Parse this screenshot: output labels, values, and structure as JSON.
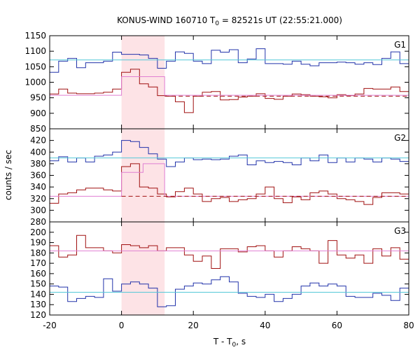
{
  "chart_data": [
    {
      "type": "line",
      "title_prefix": "KONUS-WIND 160710 T",
      "title_sub": "0",
      "title_suffix": " = 82521s UT (22:55:21.000)",
      "xlabel_prefix": "T - T",
      "xlabel_sub": "0",
      "xlabel_suffix": ", s",
      "ylabel": "counts / sec",
      "xlim": [
        -20,
        80
      ],
      "x_ticks": [
        "-20",
        "0",
        "20",
        "40",
        "60",
        "80"
      ],
      "highlight_interval": [
        0,
        12
      ],
      "colors": {
        "highlight": "#fde3e6",
        "blue": "#2233aa",
        "red": "#a01010",
        "cyan": "#55c8d8",
        "pink": "#e07fd2"
      },
      "panels": [
        {
          "label": "G1",
          "ylim": [
            850,
            1150
          ],
          "y_ticks": [
            "850",
            "900",
            "950",
            "1000",
            "1050",
            "1100",
            "1150"
          ],
          "series": [
            {
              "color": "#2233aa",
              "x": [
                -20,
                -17.5,
                -15,
                -12.5,
                -10,
                -7.5,
                -5,
                -2.5,
                0,
                2.5,
                5,
                7.5,
                10,
                12.5,
                15,
                17.5,
                20,
                22.5,
                25,
                27.5,
                30,
                32.5,
                35,
                37.5,
                40,
                42.5,
                45,
                47.5,
                50,
                52.5,
                55,
                57.5,
                60,
                62.5,
                65,
                67.5,
                70,
                72.5,
                75,
                77.5,
                80
              ],
              "values": [
                1032,
                1068,
                1077,
                1047,
                1063,
                1063,
                1068,
                1097,
                1090,
                1090,
                1088,
                1077,
                1045,
                1068,
                1098,
                1093,
                1068,
                1060,
                1103,
                1097,
                1105,
                1063,
                1075,
                1108,
                1060,
                1060,
                1058,
                1068,
                1058,
                1053,
                1063,
                1063,
                1065,
                1063,
                1058,
                1063,
                1057,
                1077,
                1098,
                1060,
                1053
              ]
            },
            {
              "color": "#55c8d8",
              "x": [
                -20,
                80
              ],
              "values": [
                1072,
                1072
              ]
            },
            {
              "color": "#a01010",
              "x": [
                -20,
                -17.5,
                -15,
                -12.5,
                -10,
                -7.5,
                -5,
                -2.5,
                0,
                2.5,
                5,
                7.5,
                10,
                12.5,
                15,
                17.5,
                20,
                22.5,
                25,
                27.5,
                30,
                32.5,
                35,
                37.5,
                40,
                42.5,
                45,
                47.5,
                50,
                52.5,
                55,
                57.5,
                60,
                62.5,
                65,
                67.5,
                70,
                72.5,
                75,
                77.5,
                80
              ],
              "values": [
                962,
                978,
                965,
                963,
                963,
                965,
                968,
                978,
                1032,
                1042,
                995,
                985,
                957,
                955,
                937,
                902,
                955,
                968,
                970,
                943,
                944,
                952,
                955,
                963,
                948,
                945,
                955,
                962,
                960,
                955,
                953,
                950,
                960,
                957,
                962,
                980,
                978,
                978,
                985,
                970,
                965
              ]
            },
            {
              "color": "#e07fd2",
              "x": [
                -20,
                0,
                0,
                12,
                12,
                80
              ],
              "values": [
                958,
                958,
                1018,
                1018,
                958,
                958
              ]
            },
            {
              "color": "#a01010",
              "dashed": true,
              "x": [
                12,
                80
              ],
              "values": [
                955,
                955
              ]
            }
          ]
        },
        {
          "label": "G2",
          "ylim": [
            280,
            440
          ],
          "y_ticks": [
            "280",
            "300",
            "320",
            "340",
            "360",
            "380",
            "400",
            "420"
          ],
          "series": [
            {
              "color": "#2233aa",
              "x": [
                -20,
                -17.5,
                -15,
                -12.5,
                -10,
                -7.5,
                -5,
                -2.5,
                0,
                2.5,
                5,
                7.5,
                10,
                12.5,
                15,
                17.5,
                20,
                22.5,
                25,
                27.5,
                30,
                32.5,
                35,
                37.5,
                40,
                42.5,
                45,
                47.5,
                50,
                52.5,
                55,
                57.5,
                60,
                62.5,
                65,
                67.5,
                70,
                72.5,
                75,
                77.5,
                80
              ],
              "values": [
                385,
                392,
                383,
                390,
                383,
                393,
                395,
                400,
                420,
                418,
                408,
                397,
                388,
                375,
                383,
                390,
                387,
                388,
                387,
                388,
                393,
                395,
                378,
                385,
                382,
                384,
                382,
                378,
                390,
                385,
                395,
                382,
                390,
                383,
                390,
                388,
                383,
                390,
                388,
                384,
                390
              ]
            },
            {
              "color": "#55c8d8",
              "x": [
                -20,
                80
              ],
              "values": [
                390,
                390
              ]
            },
            {
              "color": "#a01010",
              "x": [
                -20,
                -17.5,
                -15,
                -12.5,
                -10,
                -7.5,
                -5,
                -2.5,
                0,
                2.5,
                5,
                7.5,
                10,
                12.5,
                15,
                17.5,
                20,
                22.5,
                25,
                27.5,
                30,
                32.5,
                35,
                37.5,
                40,
                42.5,
                45,
                47.5,
                50,
                52.5,
                55,
                57.5,
                60,
                62.5,
                65,
                67.5,
                70,
                72.5,
                75,
                77.5,
                80
              ],
              "values": [
                312,
                328,
                330,
                335,
                338,
                338,
                335,
                333,
                375,
                380,
                340,
                338,
                328,
                323,
                332,
                338,
                328,
                315,
                320,
                322,
                315,
                318,
                320,
                328,
                340,
                320,
                313,
                323,
                318,
                330,
                333,
                328,
                320,
                318,
                315,
                310,
                322,
                330,
                330,
                328,
                328
              ]
            },
            {
              "color": "#e07fd2",
              "x": [
                -20,
                0,
                0,
                6,
                6,
                12,
                12,
                80
              ],
              "values": [
                324,
                324,
                365,
                365,
                380,
                380,
                324,
                324
              ]
            },
            {
              "color": "#a01010",
              "dashed": true,
              "x": [
                0,
                80
              ],
              "values": [
                324,
                324
              ]
            }
          ]
        },
        {
          "label": "G3",
          "ylim": [
            120,
            210
          ],
          "y_ticks": [
            "120",
            "130",
            "140",
            "150",
            "160",
            "170",
            "180",
            "190",
            "200"
          ],
          "series": [
            {
              "color": "#2233aa",
              "x": [
                -20,
                -17.5,
                -15,
                -12.5,
                -10,
                -7.5,
                -5,
                -2.5,
                0,
                2.5,
                5,
                7.5,
                10,
                12.5,
                15,
                17.5,
                20,
                22.5,
                25,
                27.5,
                30,
                32.5,
                35,
                37.5,
                40,
                42.5,
                45,
                47.5,
                50,
                52.5,
                55,
                57.5,
                60,
                62.5,
                65,
                67.5,
                70,
                72.5,
                75,
                77.5,
                80
              ],
              "values": [
                148,
                147,
                133,
                136,
                138,
                137,
                155,
                143,
                150,
                152,
                150,
                146,
                128,
                129,
                145,
                148,
                151,
                150,
                154,
                157,
                152,
                141,
                138,
                137,
                140,
                133,
                136,
                140,
                148,
                151,
                148,
                150,
                148,
                138,
                137,
                137,
                141,
                139,
                134,
                146,
                157
              ]
            },
            {
              "color": "#55c8d8",
              "x": [
                -20,
                80
              ],
              "values": [
                142,
                142
              ]
            },
            {
              "color": "#a01010",
              "x": [
                -20,
                -17.5,
                -15,
                -12.5,
                -10,
                -7.5,
                -5,
                -2.5,
                0,
                2.5,
                5,
                7.5,
                10,
                12.5,
                15,
                17.5,
                20,
                22.5,
                25,
                27.5,
                30,
                32.5,
                35,
                37.5,
                40,
                42.5,
                45,
                47.5,
                50,
                52.5,
                55,
                57.5,
                60,
                62.5,
                65,
                67.5,
                70,
                72.5,
                75,
                77.5,
                80
              ],
              "values": [
                187,
                176,
                178,
                197,
                185,
                185,
                182,
                180,
                188,
                187,
                185,
                187,
                182,
                185,
                185,
                178,
                172,
                177,
                165,
                184,
                184,
                181,
                186,
                187,
                182,
                176,
                182,
                186,
                184,
                182,
                170,
                192,
                178,
                175,
                178,
                170,
                184,
                177,
                185,
                174,
                163
              ]
            },
            {
              "color": "#e07fd2",
              "x": [
                -20,
                80
              ],
              "values": [
                182,
                182
              ]
            }
          ]
        }
      ]
    }
  ]
}
